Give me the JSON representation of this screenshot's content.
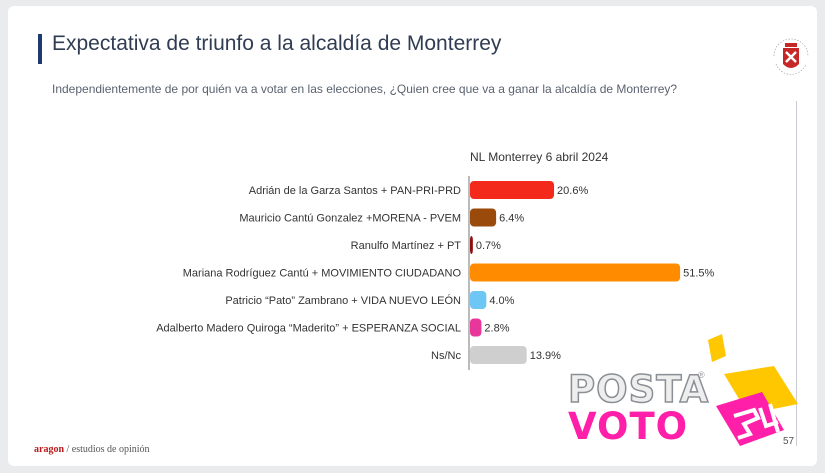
{
  "header": {
    "title": "Expectativa de triunfo a la alcaldía de Monterrey",
    "subtitle": "Independientemente de por quién va a votar en las elecciones, ¿Quien cree que va a ganar la alcaldía de Monterrey?"
  },
  "footer": {
    "brand": "aragon",
    "brand_rest": " / estudios de opinión",
    "page": "57"
  },
  "watermark": {
    "line1": "POSTA",
    "line2": "VOTO",
    "reg": "®",
    "accent_color": "#ff1fa8",
    "yellow": "#ffc700"
  },
  "chart_data": {
    "type": "bar",
    "orientation": "horizontal",
    "series_label": "NL Monterrey 6 abril 2024",
    "categories": [
      "Adrián de la Garza Santos  + PAN-PRI-PRD",
      "Mauricio Cantú Gonzalez +MORENA - PVEM",
      "Ranulfo Martínez  + PT",
      "Mariana Rodríguez Cantú + MOVIMIENTO CIUDADANO",
      "Patricio “Pato” Zambrano + VIDA NUEVO LEÓN",
      "Adalberto Madero Quiroga “Maderito” + ESPERANZA SOCIAL",
      "Ns/Nc"
    ],
    "values": [
      20.6,
      6.4,
      0.7,
      51.5,
      4.0,
      2.8,
      13.9
    ],
    "value_labels": [
      "20.6%",
      "6.4%",
      "0.7%",
      "51.5%",
      "4.0%",
      "2.8%",
      "13.9%"
    ],
    "colors": [
      "#f2291b",
      "#9a4a0a",
      "#8b1010",
      "#ff8c00",
      "#6ec6f5",
      "#e8369b",
      "#cfcfcf"
    ],
    "xlim": [
      0,
      60
    ],
    "grid": false,
    "legend": "none"
  }
}
